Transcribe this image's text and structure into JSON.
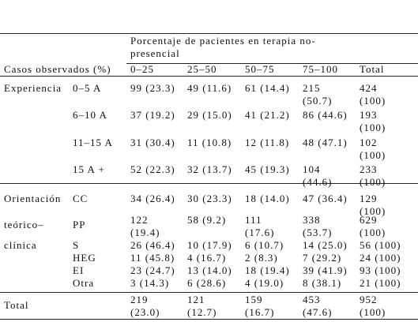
{
  "header": {
    "title": "Porcentaje de pacientes en terapia no-presencial",
    "columns": [
      "Casos observados (%)",
      "0–25",
      "25–50",
      "50–75",
      "75–100",
      "Total"
    ]
  },
  "groups": [
    {
      "label_lines": [
        "Experiencia"
      ],
      "rows": [
        {
          "label": "0–5 A",
          "cells": [
            "99 (23.3)",
            "49 (11.6)",
            "61 (14.4)",
            "215 (50.7)",
            "424 (100)"
          ]
        },
        {
          "label": "6–10 A",
          "cells": [
            "37 (19.2)",
            "29 (15.0)",
            "41 (21.2)",
            "86 (44.6)",
            "193 (100)"
          ]
        },
        {
          "label": "11–15 A",
          "cells": [
            "31 (30.4)",
            "11 (10.8)",
            "12 (11.8)",
            "48 (47.1)",
            "102 (100)"
          ]
        },
        {
          "label": "15 A +",
          "cells": [
            "52 (22.3)",
            "32 (13.7)",
            "45 (19.3)",
            "104 (44.6)",
            "233 (100)"
          ]
        }
      ]
    },
    {
      "label_lines": [
        "Orientación",
        "teórico–",
        "clínica"
      ],
      "rows": [
        {
          "label": "CC",
          "cells": [
            "34 (26.4)",
            "30 (23.3)",
            "18 (14.0)",
            "47 (36.4)",
            "129 (100)"
          ]
        },
        {
          "label": "PP",
          "cells": [
            "122 (19.4)",
            "58 (9.2)",
            "111 (17.6)",
            "338 (53.7)",
            "629 (100)"
          ]
        },
        {
          "label": "S",
          "cells": [
            "26 (46.4)",
            "10 (17.9)",
            "6 (10.7)",
            "14 (25.0)",
            "56 (100)"
          ]
        },
        {
          "label": "HEG",
          "cells": [
            "11 (45.8)",
            "4 (16.7)",
            "2 (8.3)",
            "7 (29.2)",
            "24 (100)"
          ]
        },
        {
          "label": "EI",
          "cells": [
            "23 (24.7)",
            "13 (14.0)",
            "18 (19.4)",
            "39 (41.9)",
            "93 (100)"
          ]
        },
        {
          "label": "Otra",
          "cells": [
            "3 (14.3)",
            "6 (28.6)",
            "4 (19.0)",
            "8 (38.1)",
            "21 (100)"
          ]
        }
      ]
    }
  ],
  "total": {
    "label": "Total",
    "cells": [
      "219 (23.0)",
      "121 (12.7)",
      "159 (16.7)",
      "453 (47.6)",
      "952 (100)"
    ]
  }
}
